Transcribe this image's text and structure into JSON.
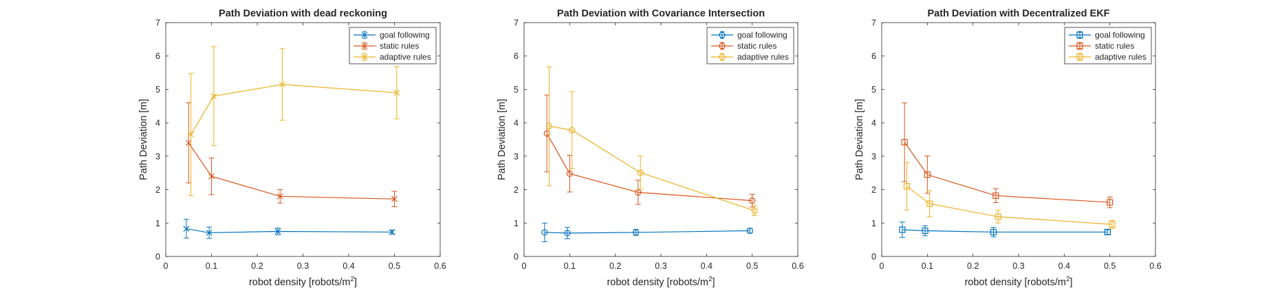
{
  "chart_data": [
    {
      "type": "line",
      "title": "Path Deviation with dead reckoning",
      "xlabel": "robot density [robots/m",
      "xlabel_sup": "2",
      "xlabel_end": "]",
      "ylabel": "Path Deviation [m]",
      "xlim": [
        0,
        0.6
      ],
      "ylim": [
        0,
        7
      ],
      "xticks": [
        "0",
        "0.1",
        "0.2",
        "0.3",
        "0.4",
        "0.5",
        "0.6"
      ],
      "yticks": [
        "0",
        "1",
        "2",
        "3",
        "4",
        "5",
        "6",
        "7"
      ],
      "marker": "x",
      "legend_position": "top-right",
      "series": [
        {
          "name": "goal following",
          "color": "#0072BD",
          "x": [
            0.045,
            0.095,
            0.245,
            0.495
          ],
          "y": [
            0.83,
            0.71,
            0.75,
            0.73
          ],
          "err": [
            0.28,
            0.17,
            0.1,
            0.06
          ]
        },
        {
          "name": "static rules",
          "color": "#D95319",
          "x": [
            0.05,
            0.1,
            0.25,
            0.5
          ],
          "y": [
            3.4,
            2.4,
            1.8,
            1.72
          ],
          "err": [
            1.2,
            0.55,
            0.2,
            0.23
          ]
        },
        {
          "name": "adaptive rules",
          "color": "#EDB120",
          "x": [
            0.055,
            0.105,
            0.255,
            0.505
          ],
          "y": [
            3.65,
            4.8,
            5.15,
            4.9
          ],
          "err": [
            1.83,
            1.48,
            1.07,
            0.78
          ]
        }
      ]
    },
    {
      "type": "line",
      "title": "Path Deviation with Covariance Intersection",
      "xlabel": "robot density [robots/m",
      "xlabel_sup": "2",
      "xlabel_end": "]",
      "ylabel": "Path Deviation [m]",
      "xlim": [
        0,
        0.6
      ],
      "ylim": [
        0,
        7
      ],
      "xticks": [
        "0",
        "0.1",
        "0.2",
        "0.3",
        "0.4",
        "0.5",
        "0.6"
      ],
      "yticks": [
        "0",
        "1",
        "2",
        "3",
        "4",
        "5",
        "6",
        "7"
      ],
      "marker": "o",
      "legend_position": "top-right",
      "series": [
        {
          "name": "goal following",
          "color": "#0072BD",
          "x": [
            0.045,
            0.095,
            0.245,
            0.495
          ],
          "y": [
            0.72,
            0.7,
            0.72,
            0.77
          ],
          "err": [
            0.28,
            0.17,
            0.09,
            0.07
          ]
        },
        {
          "name": "static rules",
          "color": "#D95319",
          "x": [
            0.05,
            0.1,
            0.25,
            0.5
          ],
          "y": [
            3.68,
            2.48,
            1.92,
            1.67
          ],
          "err": [
            1.15,
            0.55,
            0.36,
            0.19
          ]
        },
        {
          "name": "adaptive rules",
          "color": "#EDB120",
          "x": [
            0.055,
            0.105,
            0.255,
            0.505
          ],
          "y": [
            3.9,
            3.78,
            2.51,
            1.37
          ],
          "err": [
            1.78,
            1.15,
            0.5,
            0.15
          ]
        }
      ]
    },
    {
      "type": "line",
      "title": "Path Deviation with Decentralized EKF",
      "xlabel": "robot density [robots/m",
      "xlabel_sup": "2",
      "xlabel_end": "]",
      "ylabel": "Path Deviation [m]",
      "xlim": [
        0,
        0.6
      ],
      "ylim": [
        0,
        7
      ],
      "xticks": [
        "0",
        "0.1",
        "0.2",
        "0.3",
        "0.4",
        "0.5",
        "0.6"
      ],
      "yticks": [
        "0",
        "1",
        "2",
        "3",
        "4",
        "5",
        "6",
        "7"
      ],
      "marker": "s",
      "legend_position": "top-right",
      "series": [
        {
          "name": "goal following",
          "color": "#0072BD",
          "x": [
            0.045,
            0.095,
            0.245,
            0.495
          ],
          "y": [
            0.8,
            0.77,
            0.73,
            0.73
          ],
          "err": [
            0.23,
            0.15,
            0.14,
            0.07
          ]
        },
        {
          "name": "static rules",
          "color": "#D95319",
          "x": [
            0.05,
            0.1,
            0.25,
            0.5
          ],
          "y": [
            3.42,
            2.45,
            1.82,
            1.62
          ],
          "err": [
            1.18,
            0.56,
            0.21,
            0.16
          ]
        },
        {
          "name": "adaptive rules",
          "color": "#EDB120",
          "x": [
            0.055,
            0.105,
            0.255,
            0.505
          ],
          "y": [
            2.1,
            1.58,
            1.19,
            0.96
          ],
          "err": [
            0.71,
            0.39,
            0.19,
            0.12
          ]
        }
      ]
    }
  ]
}
